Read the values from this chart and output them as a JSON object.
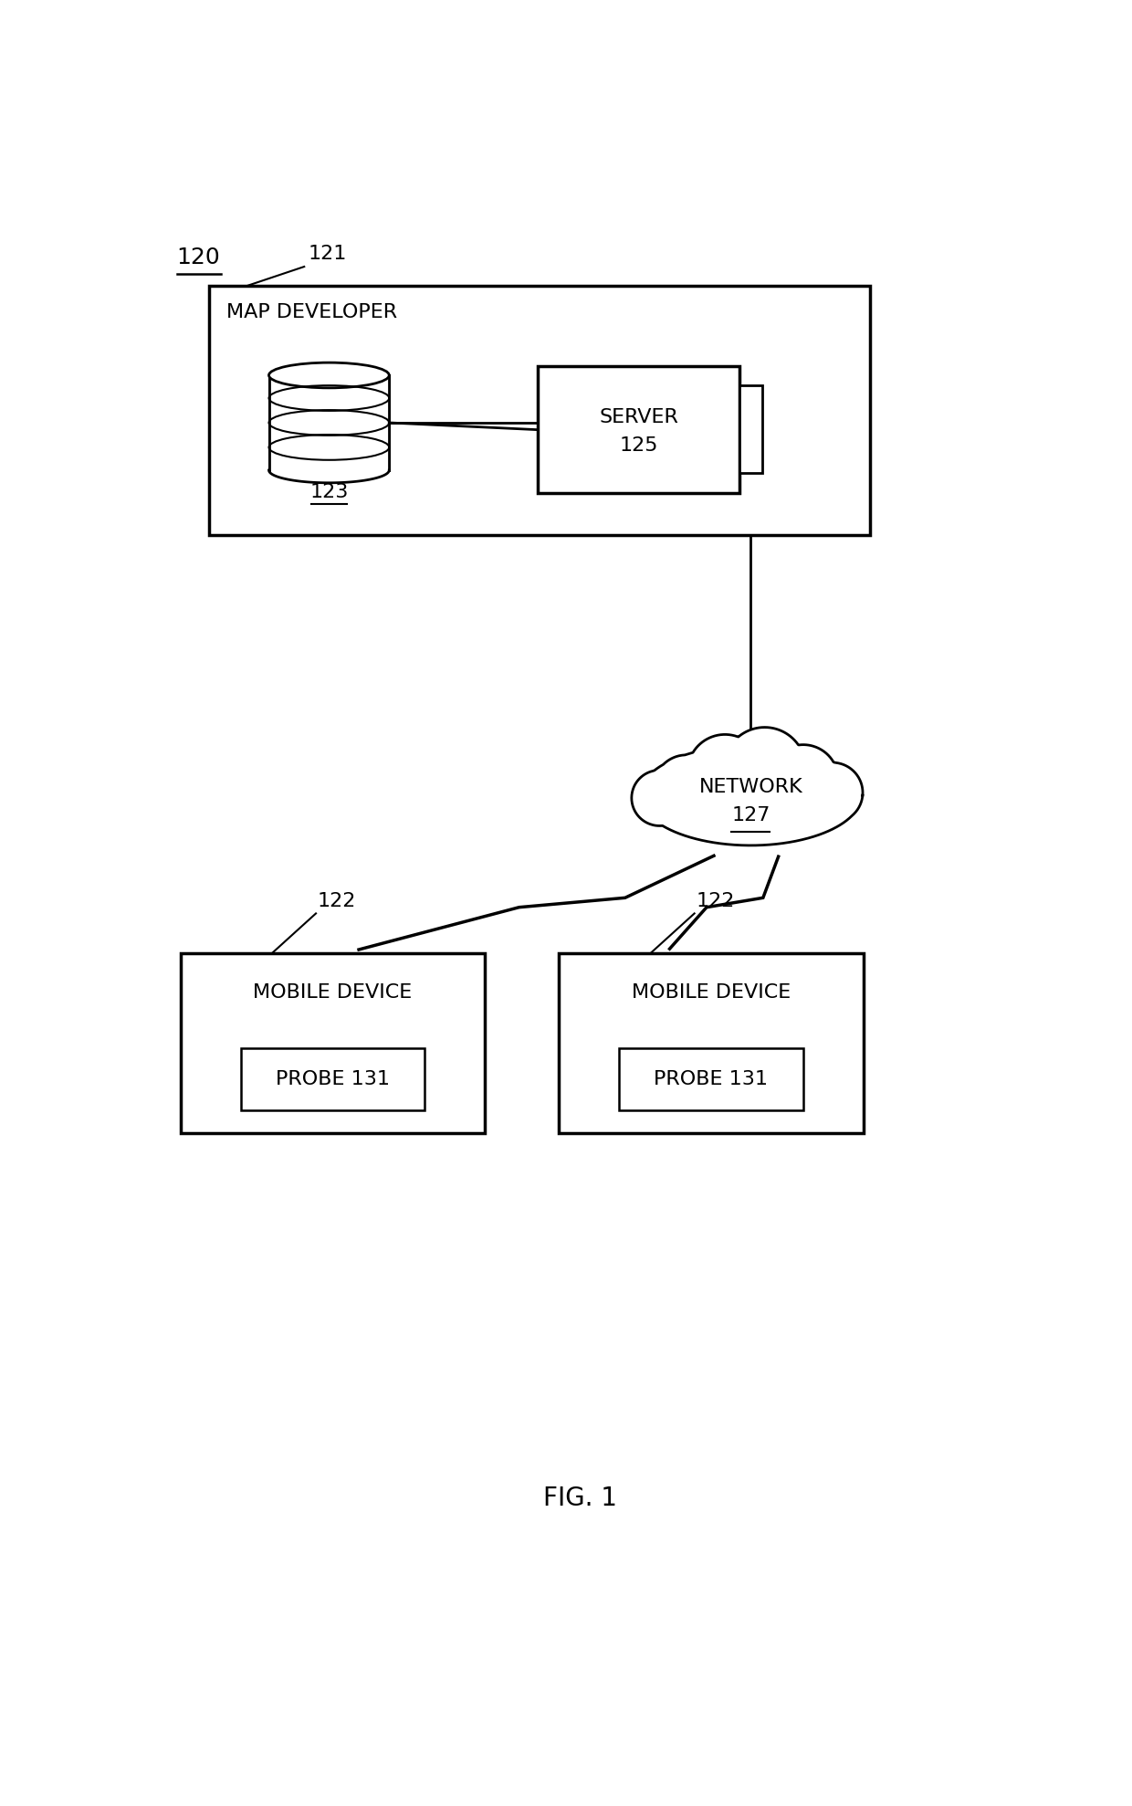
{
  "bg_color": "#ffffff",
  "text_color": "#000000",
  "fig_label": "120",
  "fig_caption": "FIG. 1",
  "map_dev_label": "121",
  "map_dev_text": "MAP DEVELOPER",
  "db_label": "123",
  "server_label": "125",
  "server_text": "SERVER",
  "network_text": "NETWORK",
  "network_label": "127",
  "mobile_label": "122",
  "mobile_text": "MOBILE DEVICE",
  "probe_text": "PROBE 131",
  "font_size_labels": 16,
  "font_size_numbers": 16,
  "font_size_caption": 20,
  "lw_thick": 2.5,
  "lw_medium": 2.0,
  "lw_thin": 1.8
}
